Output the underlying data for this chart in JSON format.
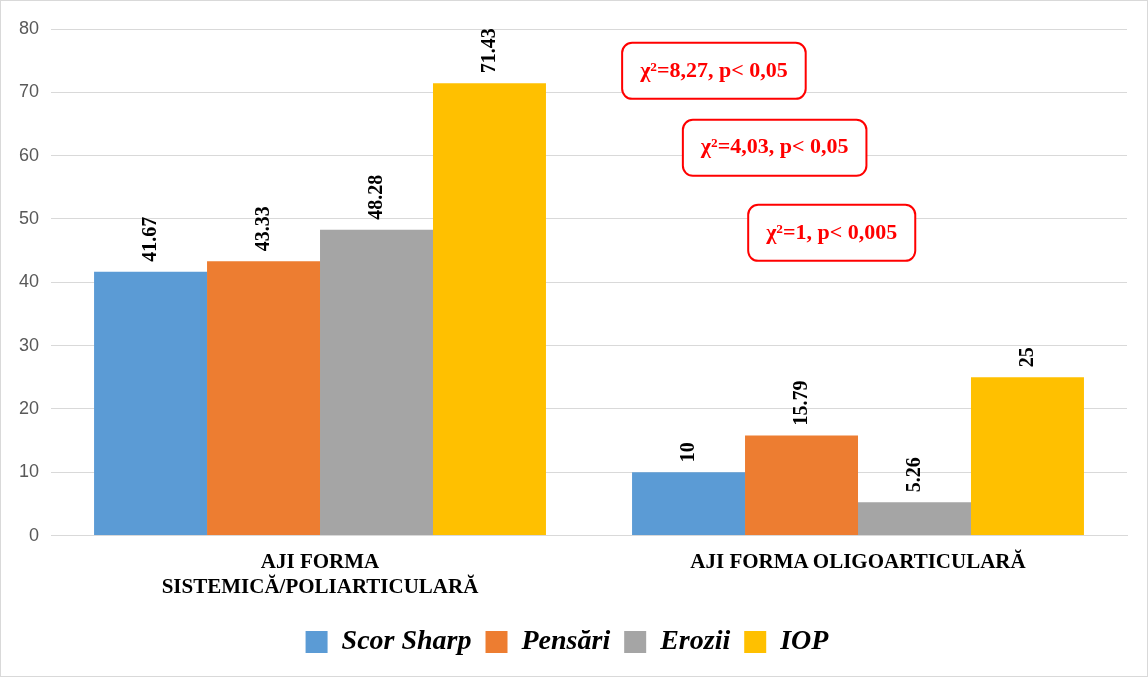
{
  "chart_data": {
    "type": "bar",
    "categories": [
      "AJI FORMA SISTEMICĂ/POLIARTICULARĂ",
      "AJI FORMA OLIGOARTICULARĂ"
    ],
    "series": [
      {
        "name": "Scor Sharp",
        "color": "#5b9bd5",
        "values": [
          41.67,
          10
        ]
      },
      {
        "name": "Pensări",
        "color": "#ed7d31",
        "values": [
          43.33,
          15.79
        ]
      },
      {
        "name": "Erozii",
        "color": "#a5a5a5",
        "values": [
          48.28,
          5.26
        ]
      },
      {
        "name": "IOP",
        "color": "#ffc000",
        "values": [
          71.43,
          25
        ]
      }
    ],
    "ylim": [
      0,
      80
    ],
    "yticks": [
      0,
      10,
      20,
      30,
      40,
      50,
      60,
      70,
      80
    ],
    "grid": "y",
    "legend": "bottom",
    "data_labels": true,
    "annotations": [
      "χ²=8,27, p< 0,05",
      "χ²=4,03, p< 0,05",
      "χ²=1, p< 0,005"
    ]
  }
}
